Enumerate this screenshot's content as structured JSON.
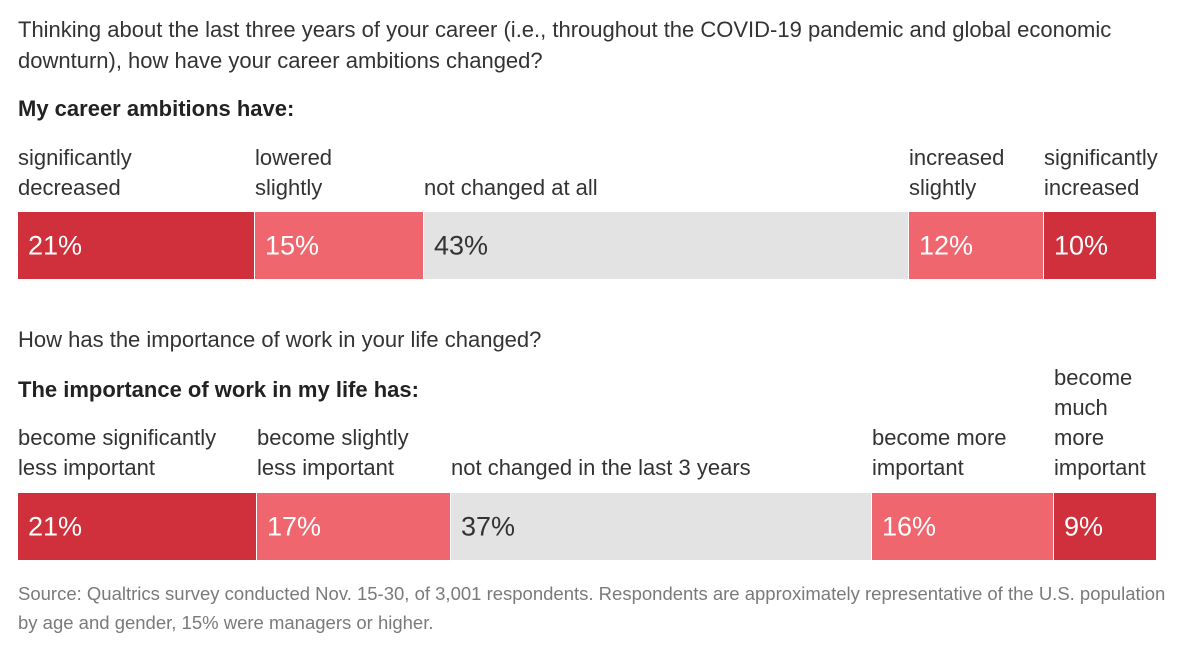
{
  "intro": "Thinking about the last three years of your career (i.e., throughout the COVID-19 pandemic and global economic downturn), how have your career ambitions changed?",
  "colors": {
    "strong": "#d0303b",
    "slight": "#f0666e",
    "neutral": "#e3e3e3"
  },
  "chart_data": [
    {
      "type": "bar",
      "stacked": true,
      "orientation": "horizontal",
      "question": "",
      "heading": "My career ambitions have:",
      "categories": [
        "significantly decreased",
        "lowered slightly",
        "not changed at all",
        "increased slightly",
        "significantly increased"
      ],
      "values": [
        21,
        15,
        43,
        12,
        10
      ],
      "value_labels": [
        "21%",
        "15%",
        "43%",
        "12%",
        "10%"
      ],
      "tones": [
        "strong",
        "slight",
        "neutral",
        "slight",
        "strong"
      ]
    },
    {
      "type": "bar",
      "stacked": true,
      "orientation": "horizontal",
      "question": "How has the importance of work in your life changed?",
      "heading": "The importance of work in my life has:",
      "categories": [
        "become significantly less important",
        "become slightly less important",
        "not changed in the last 3 years",
        "become more important",
        "become much more important"
      ],
      "values": [
        21,
        17,
        37,
        16,
        9
      ],
      "value_labels": [
        "21%",
        "17%",
        "37%",
        "16%",
        "9%"
      ],
      "tones": [
        "strong",
        "slight",
        "neutral",
        "slight",
        "strong"
      ]
    }
  ],
  "source": "Source: Qualtrics survey conducted Nov. 15-30, of 3,001 respondents. Respondents are approximately representative of the U.S. population by age and gender, 15% were managers or higher."
}
